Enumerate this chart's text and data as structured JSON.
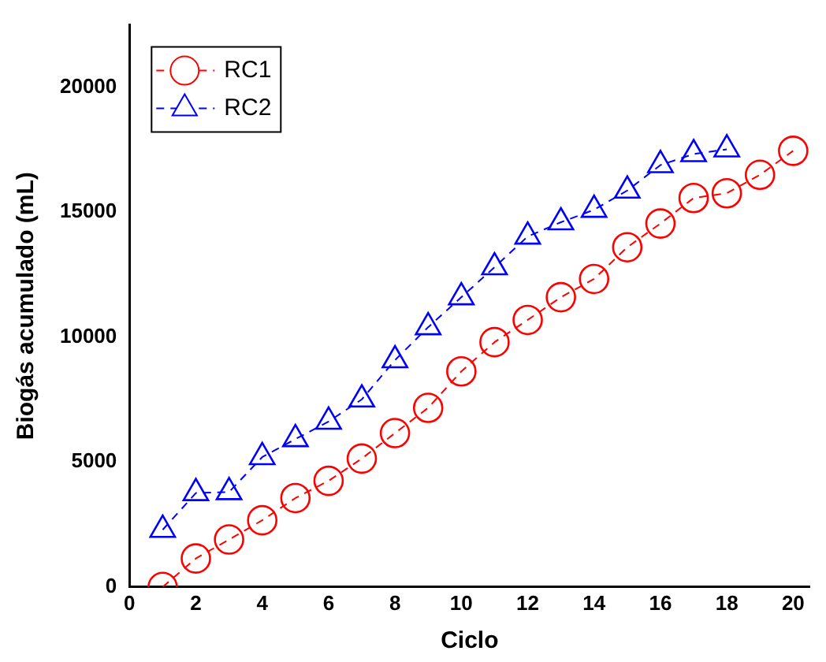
{
  "chart_data": {
    "type": "line",
    "xlabel": "Ciclo",
    "ylabel": "Biogás acumulado (mL)",
    "x": [
      1,
      2,
      3,
      4,
      5,
      6,
      7,
      8,
      9,
      10,
      11,
      12,
      13,
      14,
      15,
      16,
      17,
      18,
      19,
      20
    ],
    "xlim": [
      0,
      20.5
    ],
    "xticks": [
      0,
      2,
      4,
      6,
      8,
      10,
      12,
      14,
      16,
      18,
      20
    ],
    "ylim": [
      0,
      22500
    ],
    "yticks": [
      0,
      5000,
      10000,
      15000,
      20000
    ],
    "grid": false,
    "legend": "top left",
    "line_style": "dashed",
    "series": [
      {
        "name": "RC1",
        "color": "#ff0000",
        "marker": "circle",
        "values": [
          0,
          1140,
          1900,
          2670,
          3560,
          4250,
          5140,
          6160,
          7170,
          8630,
          9800,
          10690,
          11600,
          12330,
          13600,
          14550,
          15570,
          15760,
          16500,
          17460
        ]
      },
      {
        "name": "RC2",
        "color": "#0000ff",
        "marker": "triangle",
        "values": [
          2290,
          3760,
          3800,
          5200,
          5920,
          6620,
          7510,
          9080,
          10400,
          11600,
          12800,
          14030,
          14600,
          15100,
          15870,
          16890,
          17330,
          17520,
          null,
          null
        ]
      }
    ]
  }
}
